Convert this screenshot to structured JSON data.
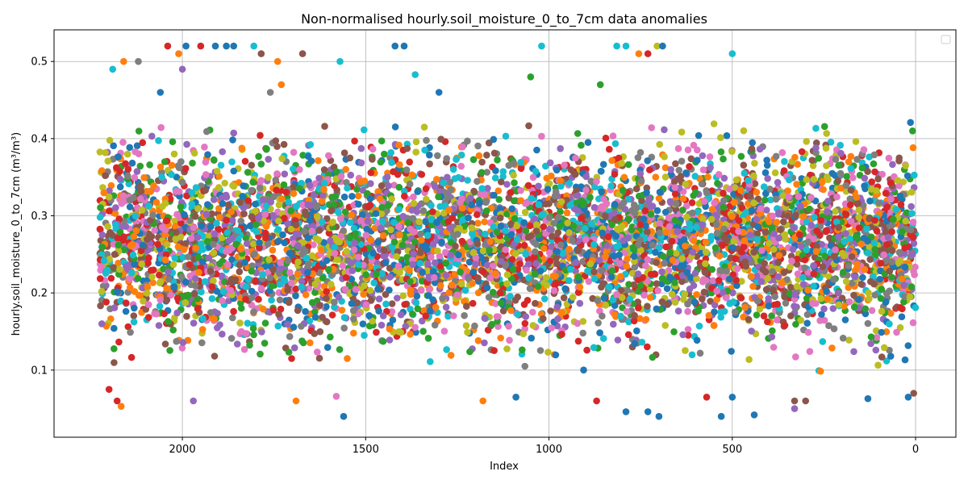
{
  "chart_data": {
    "type": "scatter",
    "title": "Non-normalised hourly.soil_moisture_0_to_7cm data anomalies",
    "xlabel": "Index",
    "ylabel": "hourly.soil_moisture_0_to_7cm (m³/m³)",
    "xlim": [
      2350,
      -110
    ],
    "ylim": [
      0.013,
      0.541
    ],
    "x_inverted": true,
    "x_ticks": [
      2000,
      1500,
      1000,
      500,
      0
    ],
    "x_tick_labels": [
      "2000",
      "1500",
      "1000",
      "500",
      "0"
    ],
    "y_ticks": [
      0.1,
      0.2,
      0.3,
      0.4,
      0.5
    ],
    "y_tick_labels": [
      "0.1",
      "0.2",
      "0.3",
      "0.4",
      "0.5"
    ],
    "grid": true,
    "legend": {
      "placement": "upper-right",
      "entries": []
    },
    "palette": [
      "#1f77b4",
      "#ff7f0e",
      "#2ca02c",
      "#d62728",
      "#9467bd",
      "#8c564b",
      "#e377c2",
      "#7f7f7f",
      "#bcbd22",
      "#17becf"
    ],
    "series_count": 10,
    "x_extent": [
      0,
      2225
    ],
    "typical_band": [
      0.09,
      0.44
    ],
    "outliers": [
      {
        "x": 2167,
        "y": 0.053,
        "color": "#ff7f0e"
      },
      {
        "x": 2178,
        "y": 0.06,
        "color": "#d62728"
      },
      {
        "x": 2200,
        "y": 0.075,
        "color": "#d62728"
      },
      {
        "x": 2160,
        "y": 0.5,
        "color": "#ff7f0e"
      },
      {
        "x": 2190,
        "y": 0.49,
        "color": "#17becf"
      },
      {
        "x": 2120,
        "y": 0.5,
        "color": "#7f7f7f"
      },
      {
        "x": 2060,
        "y": 0.46,
        "color": "#1f77b4"
      },
      {
        "x": 2040,
        "y": 0.52,
        "color": "#d62728"
      },
      {
        "x": 2010,
        "y": 0.51,
        "color": "#ff7f0e"
      },
      {
        "x": 2000,
        "y": 0.49,
        "color": "#9467bd"
      },
      {
        "x": 1990,
        "y": 0.52,
        "color": "#1f77b4"
      },
      {
        "x": 1950,
        "y": 0.52,
        "color": "#d62728"
      },
      {
        "x": 1910,
        "y": 0.52,
        "color": "#1f77b4"
      },
      {
        "x": 1880,
        "y": 0.52,
        "color": "#1f77b4"
      },
      {
        "x": 1860,
        "y": 0.52,
        "color": "#1f77b4"
      },
      {
        "x": 1805,
        "y": 0.52,
        "color": "#17becf"
      },
      {
        "x": 1785,
        "y": 0.51,
        "color": "#8c564b"
      },
      {
        "x": 1740,
        "y": 0.5,
        "color": "#ff7f0e"
      },
      {
        "x": 1760,
        "y": 0.46,
        "color": "#7f7f7f"
      },
      {
        "x": 1730,
        "y": 0.47,
        "color": "#ff7f0e"
      },
      {
        "x": 1672,
        "y": 0.51,
        "color": "#8c564b"
      },
      {
        "x": 1570,
        "y": 0.5,
        "color": "#17becf"
      },
      {
        "x": 1420,
        "y": 0.52,
        "color": "#1f77b4"
      },
      {
        "x": 1395,
        "y": 0.52,
        "color": "#1f77b4"
      },
      {
        "x": 1365,
        "y": 0.483,
        "color": "#17becf"
      },
      {
        "x": 1300,
        "y": 0.46,
        "color": "#1f77b4"
      },
      {
        "x": 1020,
        "y": 0.52,
        "color": "#17becf"
      },
      {
        "x": 1050,
        "y": 0.48,
        "color": "#2ca02c"
      },
      {
        "x": 815,
        "y": 0.52,
        "color": "#17becf"
      },
      {
        "x": 790,
        "y": 0.52,
        "color": "#17becf"
      },
      {
        "x": 755,
        "y": 0.51,
        "color": "#ff7f0e"
      },
      {
        "x": 730,
        "y": 0.51,
        "color": "#d62728"
      },
      {
        "x": 705,
        "y": 0.52,
        "color": "#bcbd22"
      },
      {
        "x": 690,
        "y": 0.52,
        "color": "#1f77b4"
      },
      {
        "x": 500,
        "y": 0.51,
        "color": "#17becf"
      },
      {
        "x": 860,
        "y": 0.47,
        "color": "#2ca02c"
      },
      {
        "x": 1560,
        "y": 0.04,
        "color": "#1f77b4"
      },
      {
        "x": 1090,
        "y": 0.065,
        "color": "#1f77b4"
      },
      {
        "x": 1180,
        "y": 0.06,
        "color": "#ff7f0e"
      },
      {
        "x": 1690,
        "y": 0.06,
        "color": "#ff7f0e"
      },
      {
        "x": 1580,
        "y": 0.066,
        "color": "#e377c2"
      },
      {
        "x": 1970,
        "y": 0.06,
        "color": "#9467bd"
      },
      {
        "x": 870,
        "y": 0.06,
        "color": "#d62728"
      },
      {
        "x": 790,
        "y": 0.046,
        "color": "#1f77b4"
      },
      {
        "x": 730,
        "y": 0.046,
        "color": "#1f77b4"
      },
      {
        "x": 700,
        "y": 0.04,
        "color": "#1f77b4"
      },
      {
        "x": 570,
        "y": 0.065,
        "color": "#d62728"
      },
      {
        "x": 530,
        "y": 0.04,
        "color": "#1f77b4"
      },
      {
        "x": 500,
        "y": 0.065,
        "color": "#1f77b4"
      },
      {
        "x": 440,
        "y": 0.042,
        "color": "#1f77b4"
      },
      {
        "x": 330,
        "y": 0.06,
        "color": "#8c564b"
      },
      {
        "x": 300,
        "y": 0.06,
        "color": "#8c564b"
      },
      {
        "x": 330,
        "y": 0.05,
        "color": "#9467bd"
      },
      {
        "x": 130,
        "y": 0.063,
        "color": "#1f77b4"
      },
      {
        "x": 20,
        "y": 0.065,
        "color": "#1f77b4"
      },
      {
        "x": 5,
        "y": 0.07,
        "color": "#8c564b"
      }
    ]
  }
}
